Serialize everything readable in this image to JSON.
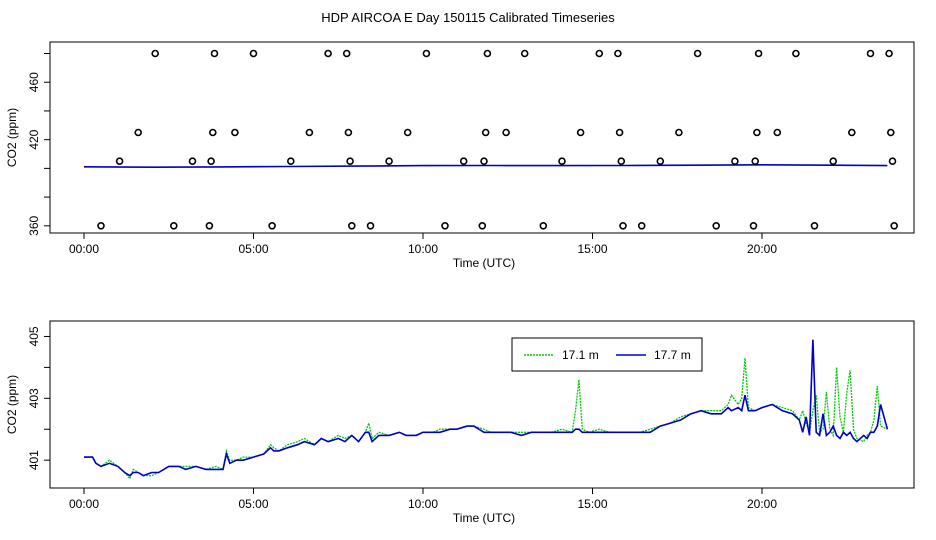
{
  "title": "HDP AIRCOA E  Day 150115  Calibrated Timeseries",
  "colors": {
    "series_17_1": "#00cc00",
    "series_17_7": "#0000cc",
    "markers": "#000000",
    "axes": "#000000"
  },
  "chart_data": [
    {
      "type": "scatter",
      "xlabel": "Time (UTC)",
      "ylabel": "CO2 (ppm)",
      "xlim": [
        0,
        24
      ],
      "ylim": [
        355,
        488
      ],
      "x_ticks": [
        {
          "value": 0,
          "label": "00:00"
        },
        {
          "value": 5,
          "label": "05:00"
        },
        {
          "value": 10,
          "label": "10:00"
        },
        {
          "value": 15,
          "label": "15:00"
        },
        {
          "value": 20,
          "label": "20:00"
        }
      ],
      "y_ticks": [
        {
          "value": 360,
          "label": "360"
        },
        {
          "value": 420,
          "label": "420"
        },
        {
          "value": 460,
          "label": "460"
        }
      ],
      "y_minor_ticks": [
        380,
        400,
        440,
        480
      ],
      "grid": false,
      "calibration_points": [
        [
          0.5,
          360
        ],
        [
          1.05,
          405
        ],
        [
          1.6,
          425
        ],
        [
          2.1,
          480
        ],
        [
          2.65,
          360
        ],
        [
          3.2,
          405
        ],
        [
          3.7,
          360
        ],
        [
          3.75,
          405
        ],
        [
          3.8,
          425
        ],
        [
          3.85,
          480
        ],
        [
          4.45,
          425
        ],
        [
          5.0,
          480
        ],
        [
          5.55,
          360
        ],
        [
          6.1,
          405
        ],
        [
          6.65,
          425
        ],
        [
          7.2,
          480
        ],
        [
          7.75,
          480
        ],
        [
          7.8,
          425
        ],
        [
          7.85,
          405
        ],
        [
          7.9,
          360
        ],
        [
          8.45,
          360
        ],
        [
          9.0,
          405
        ],
        [
          9.55,
          425
        ],
        [
          10.1,
          480
        ],
        [
          10.65,
          360
        ],
        [
          11.2,
          405
        ],
        [
          11.75,
          360
        ],
        [
          11.8,
          405
        ],
        [
          11.85,
          425
        ],
        [
          11.9,
          480
        ],
        [
          12.45,
          425
        ],
        [
          13.0,
          480
        ],
        [
          13.55,
          360
        ],
        [
          14.1,
          405
        ],
        [
          14.65,
          425
        ],
        [
          15.2,
          480
        ],
        [
          15.75,
          480
        ],
        [
          15.8,
          425
        ],
        [
          15.85,
          405
        ],
        [
          15.9,
          360
        ],
        [
          16.45,
          360
        ],
        [
          17.0,
          405
        ],
        [
          17.55,
          425
        ],
        [
          18.1,
          480
        ],
        [
          18.65,
          360
        ],
        [
          19.2,
          405
        ],
        [
          19.75,
          360
        ],
        [
          19.8,
          405
        ],
        [
          19.85,
          425
        ],
        [
          19.9,
          480
        ],
        [
          20.45,
          425
        ],
        [
          21.0,
          480
        ],
        [
          21.55,
          360
        ],
        [
          22.1,
          405
        ],
        [
          22.65,
          425
        ],
        [
          23.2,
          480
        ],
        [
          23.75,
          480
        ],
        [
          23.8,
          425
        ],
        [
          23.85,
          405
        ],
        [
          23.9,
          360
        ]
      ],
      "baseline": [
        [
          0,
          401.1
        ],
        [
          2,
          400.8
        ],
        [
          4,
          401.0
        ],
        [
          6,
          401.3
        ],
        [
          8,
          401.6
        ],
        [
          10,
          401.9
        ],
        [
          12,
          402.0
        ],
        [
          14,
          401.9
        ],
        [
          16,
          402.0
        ],
        [
          18,
          402.2
        ],
        [
          20,
          402.5
        ],
        [
          22,
          402.2
        ],
        [
          23.7,
          401.9
        ]
      ]
    },
    {
      "type": "line",
      "xlabel": "Time (UTC)",
      "ylabel": "CO2 (ppm)",
      "xlim": [
        0,
        24
      ],
      "ylim": [
        400.1,
        405.5
      ],
      "x_ticks": [
        {
          "value": 0,
          "label": "00:00"
        },
        {
          "value": 5,
          "label": "05:00"
        },
        {
          "value": 10,
          "label": "10:00"
        },
        {
          "value": 15,
          "label": "15:00"
        },
        {
          "value": 20,
          "label": "20:00"
        }
      ],
      "y_ticks": [
        {
          "value": 401,
          "label": "401"
        },
        {
          "value": 403,
          "label": "403"
        },
        {
          "value": 405,
          "label": "405"
        }
      ],
      "y_minor_ticks": [
        402,
        404
      ],
      "grid": false,
      "legend_position": "top-right",
      "series": [
        {
          "name": "17.1 m",
          "x": [
            0,
            0.25,
            0.35,
            0.5,
            0.75,
            1.0,
            1.2,
            1.35,
            1.45,
            1.6,
            1.75,
            2.0,
            2.2,
            2.5,
            2.8,
            3.0,
            3.3,
            3.6,
            3.9,
            4.1,
            4.2,
            4.3,
            4.5,
            4.7,
            5.0,
            5.3,
            5.5,
            5.6,
            5.75,
            6.0,
            6.3,
            6.5,
            6.8,
            7.0,
            7.2,
            7.5,
            7.7,
            7.9,
            8.1,
            8.3,
            8.4,
            8.5,
            8.7,
            9.0,
            9.3,
            9.5,
            9.8,
            10.0,
            10.3,
            10.5,
            10.8,
            11.0,
            11.3,
            11.5,
            11.8,
            12.0,
            12.3,
            12.6,
            12.9,
            13.2,
            13.5,
            13.8,
            14.1,
            14.4,
            14.5,
            14.6,
            14.7,
            14.9,
            15.2,
            15.5,
            15.8,
            16.1,
            16.4,
            16.7,
            17.0,
            17.3,
            17.6,
            17.9,
            18.2,
            18.5,
            18.8,
            19.0,
            19.1,
            19.3,
            19.4,
            19.5,
            19.6,
            19.8,
            20.0,
            20.3,
            20.6,
            20.9,
            21.1,
            21.2,
            21.3,
            21.4,
            21.5,
            21.6,
            21.7,
            21.8,
            21.9,
            22.0,
            22.1,
            22.2,
            22.3,
            22.4,
            22.5,
            22.6,
            22.7,
            22.8,
            23.0,
            23.1,
            23.2,
            23.3,
            23.4,
            23.5,
            23.7
          ],
          "values": [
            401.1,
            401.1,
            400.9,
            400.8,
            401.0,
            400.8,
            400.6,
            400.4,
            400.7,
            400.6,
            400.5,
            400.5,
            400.6,
            400.8,
            400.8,
            400.8,
            400.8,
            400.7,
            400.8,
            400.7,
            401.3,
            401.0,
            401.0,
            401.1,
            401.1,
            401.2,
            401.5,
            401.4,
            401.3,
            401.5,
            401.6,
            401.7,
            401.5,
            401.7,
            401.6,
            401.8,
            401.7,
            401.8,
            401.6,
            401.9,
            402.2,
            401.7,
            401.9,
            401.8,
            401.9,
            401.8,
            401.8,
            401.9,
            401.9,
            402.0,
            402.0,
            402.0,
            402.1,
            402.1,
            402.0,
            401.9,
            401.9,
            401.9,
            401.9,
            401.9,
            401.9,
            401.9,
            402.0,
            401.9,
            402.6,
            403.6,
            402.0,
            401.9,
            402.0,
            401.9,
            401.9,
            401.9,
            401.9,
            402.0,
            402.1,
            402.2,
            402.4,
            402.5,
            402.6,
            402.6,
            402.6,
            402.8,
            403.1,
            402.8,
            403.0,
            404.3,
            402.7,
            402.6,
            402.7,
            402.8,
            402.7,
            402.6,
            402.3,
            402.6,
            402.2,
            401.9,
            402.6,
            403.1,
            401.9,
            402.0,
            403.2,
            402.0,
            401.8,
            404.0,
            402.4,
            401.9,
            403.2,
            403.9,
            402.0,
            401.7,
            401.6,
            401.8,
            401.9,
            402.3,
            403.4,
            402.1,
            402.0
          ]
        },
        {
          "name": "17.7 m",
          "x": [
            0,
            0.25,
            0.35,
            0.5,
            0.75,
            1.0,
            1.2,
            1.35,
            1.45,
            1.6,
            1.75,
            2.0,
            2.2,
            2.5,
            2.8,
            3.0,
            3.3,
            3.6,
            3.9,
            4.1,
            4.2,
            4.3,
            4.5,
            4.7,
            5.0,
            5.3,
            5.5,
            5.6,
            5.75,
            6.0,
            6.3,
            6.5,
            6.8,
            7.0,
            7.2,
            7.5,
            7.7,
            7.9,
            8.1,
            8.3,
            8.4,
            8.5,
            8.7,
            9.0,
            9.3,
            9.5,
            9.8,
            10.0,
            10.3,
            10.5,
            10.8,
            11.0,
            11.3,
            11.5,
            11.8,
            12.0,
            12.3,
            12.6,
            12.9,
            13.2,
            13.5,
            13.8,
            14.1,
            14.4,
            14.5,
            14.6,
            14.7,
            14.9,
            15.2,
            15.5,
            15.8,
            16.1,
            16.4,
            16.7,
            17.0,
            17.3,
            17.6,
            17.9,
            18.2,
            18.5,
            18.8,
            19.0,
            19.1,
            19.3,
            19.4,
            19.5,
            19.6,
            19.8,
            20.0,
            20.3,
            20.6,
            20.9,
            21.1,
            21.2,
            21.3,
            21.4,
            21.5,
            21.6,
            21.7,
            21.8,
            21.9,
            22.0,
            22.1,
            22.2,
            22.3,
            22.4,
            22.5,
            22.6,
            22.7,
            22.8,
            23.0,
            23.1,
            23.2,
            23.3,
            23.4,
            23.5,
            23.7
          ],
          "values": [
            401.1,
            401.1,
            400.9,
            400.8,
            400.9,
            400.8,
            400.6,
            400.5,
            400.6,
            400.6,
            400.5,
            400.6,
            400.6,
            400.8,
            400.8,
            400.7,
            400.8,
            400.7,
            400.7,
            400.7,
            401.2,
            400.9,
            401.0,
            401.0,
            401.1,
            401.2,
            401.4,
            401.3,
            401.3,
            401.4,
            401.5,
            401.6,
            401.5,
            401.7,
            401.6,
            401.7,
            401.6,
            401.8,
            401.6,
            401.9,
            401.9,
            401.6,
            401.8,
            401.8,
            401.9,
            401.8,
            401.8,
            401.9,
            401.9,
            401.9,
            402.0,
            402.0,
            402.1,
            402.1,
            401.9,
            401.9,
            401.9,
            401.9,
            401.8,
            401.9,
            401.9,
            401.9,
            401.9,
            401.9,
            402.0,
            402.0,
            401.9,
            401.9,
            401.9,
            401.9,
            401.9,
            401.9,
            401.9,
            401.9,
            402.1,
            402.2,
            402.3,
            402.5,
            402.6,
            402.5,
            402.5,
            402.7,
            402.6,
            402.7,
            402.6,
            403.1,
            402.6,
            402.6,
            402.7,
            402.8,
            402.6,
            402.5,
            402.3,
            401.9,
            402.4,
            401.8,
            404.9,
            401.9,
            401.8,
            402.5,
            401.8,
            401.9,
            402.1,
            401.8,
            401.7,
            401.9,
            401.8,
            401.9,
            401.7,
            401.6,
            401.8,
            401.7,
            401.9,
            401.9,
            402.1,
            402.8,
            402.0
          ]
        }
      ]
    }
  ]
}
